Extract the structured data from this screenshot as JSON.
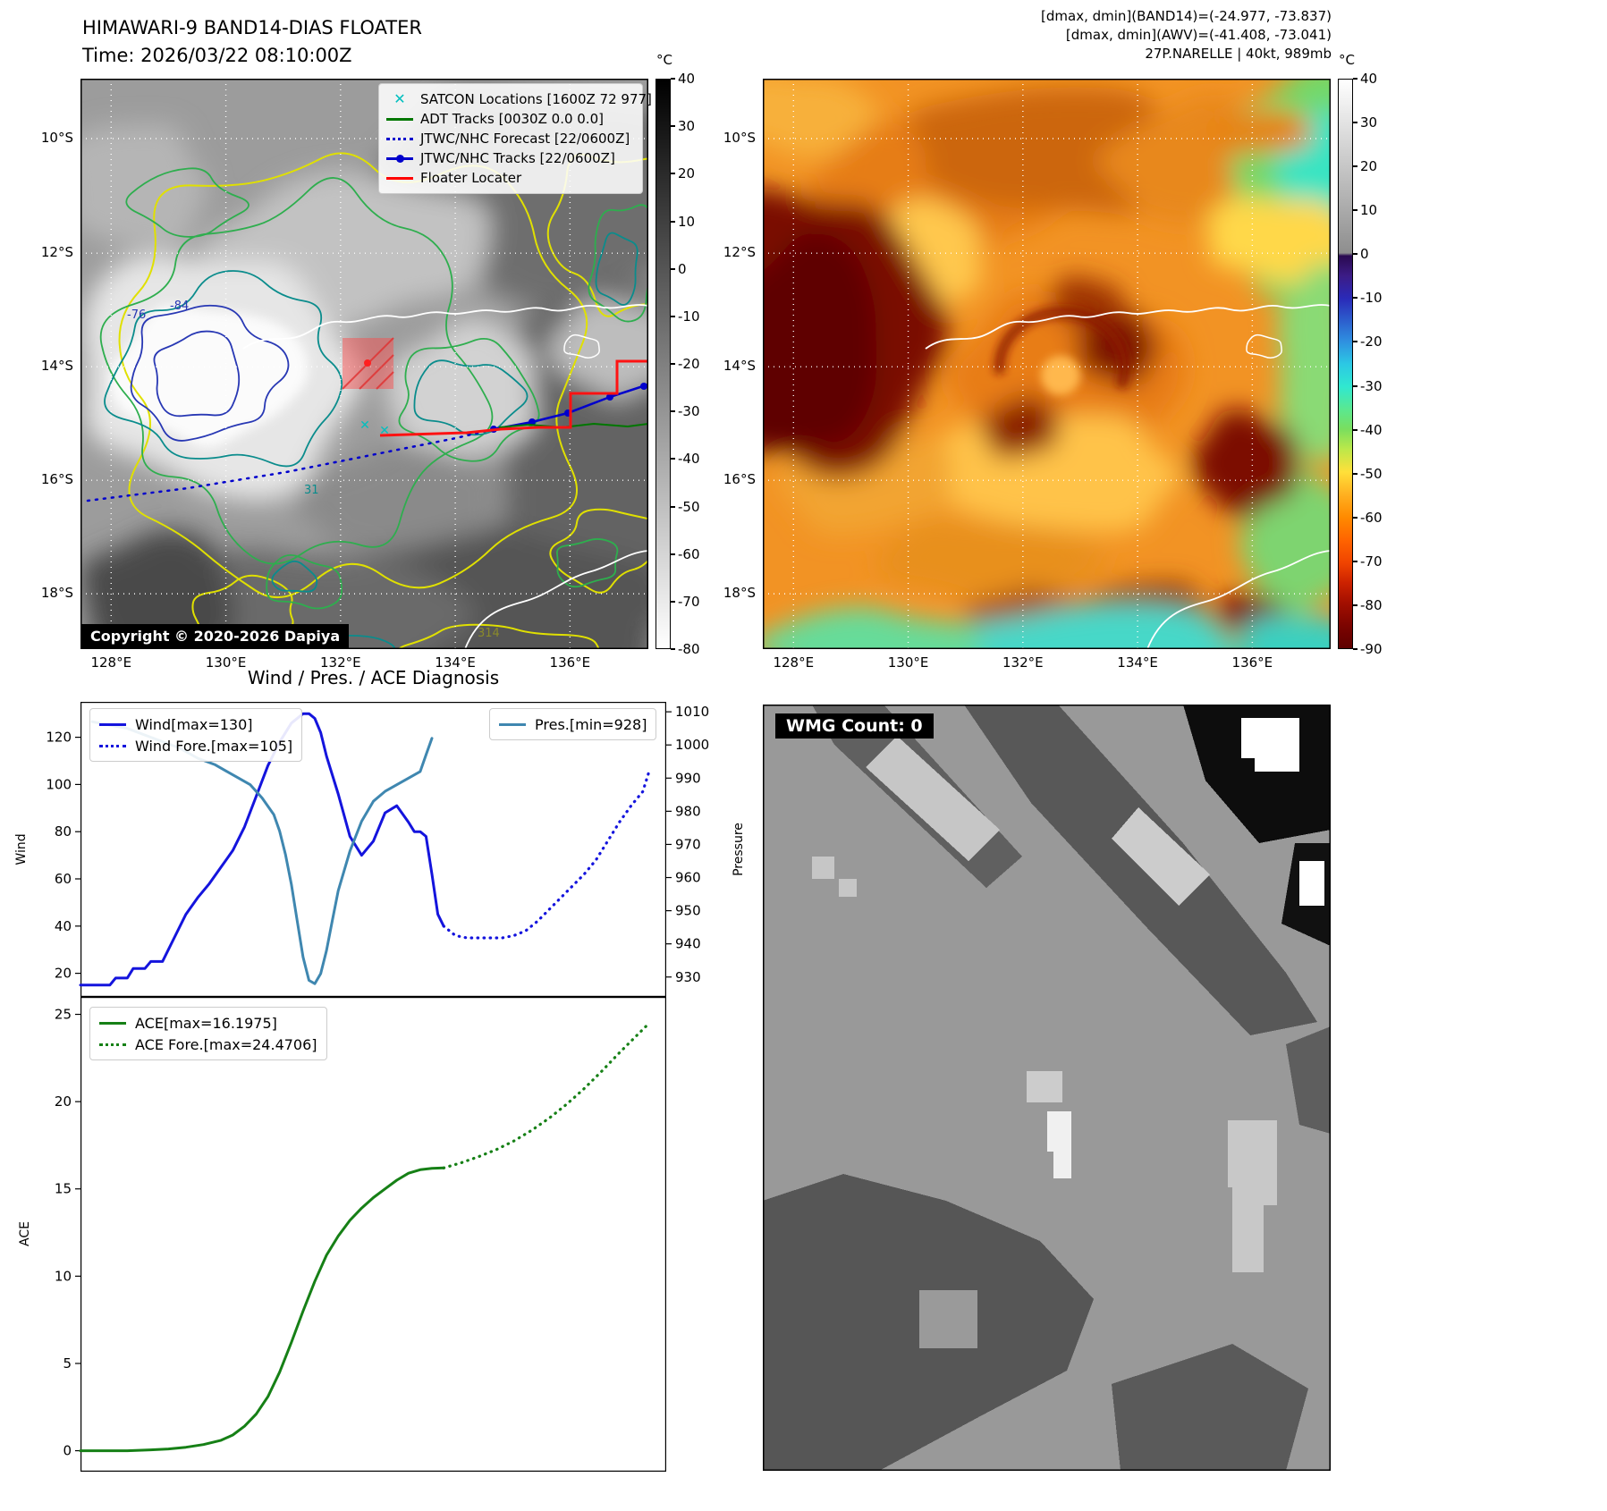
{
  "panel_band14": {
    "title": "HIMAWARI-9 BAND14-DIAS FLOATER",
    "time": "Time: 2026/03/22 08:10:00Z",
    "copyright": "Copyright © 2020-2026 Dapiya",
    "legend": [
      {
        "label": "SATCON Locations [1600Z 72 977]",
        "color": "#00bfbf",
        "style": "x-marker"
      },
      {
        "label": "ADT Tracks [0030Z 0.0 0.0]",
        "color": "#007700",
        "style": "solid"
      },
      {
        "label": "JTWC/NHC Forecast [22/0600Z]",
        "color": "#0000cc",
        "style": "dotted"
      },
      {
        "label": "JTWC/NHC Tracks [22/0600Z]",
        "color": "#0000cc",
        "style": "solid-dot"
      },
      {
        "label": "Floater Locater",
        "color": "#ff0000",
        "style": "solid"
      }
    ],
    "lat_ticks": [
      "10°S",
      "12°S",
      "14°S",
      "16°S",
      "18°S"
    ],
    "lon_ticks": [
      "128°E",
      "130°E",
      "132°E",
      "134°E",
      "136°E"
    ],
    "colorbar_unit": "°C",
    "colorbar_ticks": [
      40,
      30,
      20,
      10,
      0,
      -10,
      -20,
      -30,
      -40,
      -50,
      -60,
      -70,
      -80
    ],
    "contour_labels": [
      "-76",
      "-84",
      "31",
      "314"
    ]
  },
  "panel_awv": {
    "header_lines": [
      "[dmax, dmin](BAND14)=(-24.977, -73.837)",
      "[dmax, dmin](AWV)=(-41.408, -73.041)",
      "27P.NARELLE | 40kt, 989mb"
    ],
    "lat_ticks": [
      "10°S",
      "12°S",
      "14°S",
      "16°S",
      "18°S"
    ],
    "lon_ticks": [
      "128°E",
      "130°E",
      "132°E",
      "134°E",
      "136°E"
    ],
    "colorbar_unit": "°C",
    "colorbar_ticks": [
      40,
      30,
      20,
      10,
      0,
      -10,
      -20,
      -30,
      -40,
      -50,
      -60,
      -70,
      -80,
      -90
    ]
  },
  "wmg": {
    "label": "WMG Count: 0"
  },
  "chart_data": [
    {
      "id": "wind_pres",
      "type": "line",
      "title": "Wind / Pres. / ACE Diagnosis",
      "ylabel_left": "Wind",
      "ylabel_right": "Pressure",
      "ylim_left": [
        10,
        135
      ],
      "ylim_right": [
        924,
        1013
      ],
      "yticks_left": [
        20,
        40,
        60,
        80,
        100,
        120
      ],
      "yticks_right": [
        930,
        940,
        950,
        960,
        970,
        980,
        990,
        1000,
        1010
      ],
      "xlim": [
        0,
        100
      ],
      "legend_position": "upper left / upper right",
      "series": [
        {
          "name": "Wind[max=130]",
          "axis": "left",
          "color": "#1414dd",
          "style": "solid",
          "x": [
            0,
            3,
            5,
            6,
            8,
            9,
            11,
            12,
            14,
            16,
            18,
            20,
            22,
            24,
            26,
            28,
            30,
            32,
            34,
            36,
            38,
            39,
            40,
            41,
            42,
            44,
            46,
            48,
            50,
            52,
            54,
            56,
            57,
            58,
            59,
            60,
            61,
            62
          ],
          "values": [
            15,
            15,
            15,
            18,
            18,
            22,
            22,
            25,
            25,
            35,
            45,
            52,
            58,
            65,
            72,
            82,
            95,
            108,
            118,
            126,
            130,
            130,
            128,
            122,
            112,
            96,
            78,
            70,
            76,
            88,
            91,
            84,
            80,
            80,
            78,
            62,
            45,
            40
          ]
        },
        {
          "name": "Wind Fore.[max=105]",
          "axis": "left",
          "color": "#1414dd",
          "style": "dotted",
          "x": [
            62,
            64,
            66,
            68,
            70,
            72,
            74,
            76,
            78,
            80,
            82,
            84,
            86,
            88,
            90,
            92,
            94,
            96,
            97
          ],
          "values": [
            40,
            36,
            35,
            35,
            35,
            35,
            36,
            38,
            42,
            47,
            52,
            57,
            62,
            68,
            76,
            84,
            91,
            97,
            105
          ]
        },
        {
          "name": "Pres.[min=928]",
          "axis": "right",
          "color": "#3f87b0",
          "style": "solid",
          "x": [
            2,
            5,
            8,
            11,
            14,
            17,
            20,
            23,
            25,
            27,
            29,
            31,
            33,
            34,
            35,
            36,
            37,
            38,
            39,
            40,
            41,
            42,
            43,
            44,
            46,
            48,
            50,
            52,
            54,
            56,
            58,
            59,
            60
          ],
          "values": [
            1007,
            1006,
            1005,
            1003,
            1001,
            999,
            996,
            994,
            992,
            990,
            988,
            984,
            979,
            974,
            967,
            958,
            947,
            936,
            929,
            928,
            931,
            938,
            947,
            956,
            968,
            977,
            983,
            986,
            988,
            990,
            992,
            997,
            1002
          ]
        }
      ]
    },
    {
      "id": "ace",
      "type": "line",
      "ylabel_left": "ACE",
      "ylim_left": [
        -1.2,
        26
      ],
      "yticks_left": [
        0,
        5,
        10,
        15,
        20,
        25
      ],
      "xlim": [
        0,
        100
      ],
      "legend_position": "upper left",
      "series": [
        {
          "name": "ACE[max=16.1975]",
          "axis": "left",
          "color": "#168016",
          "style": "solid",
          "x": [
            0,
            4,
            8,
            12,
            15,
            18,
            21,
            24,
            26,
            28,
            30,
            32,
            34,
            36,
            38,
            40,
            42,
            44,
            46,
            48,
            50,
            52,
            54,
            56,
            58,
            60,
            61,
            62
          ],
          "values": [
            0,
            0,
            0,
            0.05,
            0.1,
            0.2,
            0.35,
            0.6,
            0.9,
            1.4,
            2.1,
            3.1,
            4.5,
            6.2,
            8.0,
            9.7,
            11.2,
            12.3,
            13.2,
            13.9,
            14.5,
            15.0,
            15.5,
            15.9,
            16.1,
            16.18,
            16.19,
            16.2
          ]
        },
        {
          "name": "ACE Fore.[max=24.4706]",
          "axis": "left",
          "color": "#168016",
          "style": "dotted",
          "x": [
            62,
            65,
            68,
            71,
            74,
            77,
            80,
            83,
            86,
            89,
            92,
            95,
            97
          ],
          "values": [
            16.2,
            16.5,
            16.85,
            17.25,
            17.75,
            18.35,
            19.05,
            19.85,
            20.75,
            21.75,
            22.8,
            23.8,
            24.47
          ]
        }
      ]
    }
  ]
}
